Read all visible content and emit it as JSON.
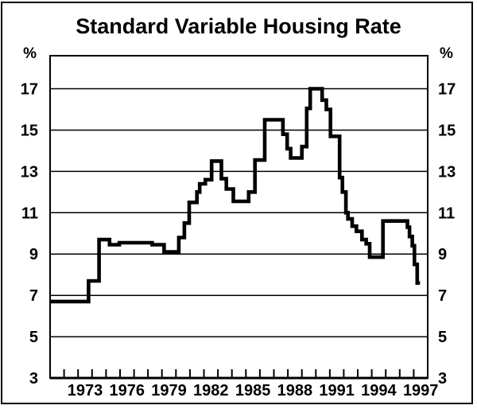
{
  "window": {
    "background": "#ffffff",
    "border_color": "#000000"
  },
  "chart_data": {
    "type": "line",
    "line_style": "step-after",
    "title": "Standard Variable Housing Rate",
    "unit_label_left": "%",
    "unit_label_right": "%",
    "grid": "horizontal",
    "legend": "none",
    "xlim": [
      1971,
      1998
    ],
    "ylim": [
      3,
      18.6
    ],
    "yticks": [
      3,
      5,
      7,
      9,
      11,
      13,
      15,
      17
    ],
    "ytick_labels_both_sides": true,
    "xtick_minor_step_years": 1,
    "xtick_label_years": [
      1973,
      1976,
      1979,
      1982,
      1985,
      1988,
      1991,
      1994,
      1997
    ],
    "series": [
      {
        "name": "Standard variable housing rate",
        "color": "#000000",
        "end_year": 1997.45,
        "points": [
          [
            1971.05,
            6.7
          ],
          [
            1973.75,
            7.7
          ],
          [
            1974.5,
            9.7
          ],
          [
            1975.25,
            9.45
          ],
          [
            1975.95,
            9.55
          ],
          [
            1978.3,
            9.45
          ],
          [
            1979.15,
            9.1
          ],
          [
            1980.2,
            9.8
          ],
          [
            1980.6,
            10.5
          ],
          [
            1980.95,
            11.5
          ],
          [
            1981.5,
            12.0
          ],
          [
            1981.7,
            12.4
          ],
          [
            1982.1,
            12.6
          ],
          [
            1982.55,
            13.5
          ],
          [
            1983.25,
            12.65
          ],
          [
            1983.6,
            12.15
          ],
          [
            1984.1,
            11.55
          ],
          [
            1985.2,
            12.0
          ],
          [
            1985.65,
            13.55
          ],
          [
            1986.35,
            15.5
          ],
          [
            1987.65,
            14.8
          ],
          [
            1987.95,
            14.1
          ],
          [
            1988.2,
            13.65
          ],
          [
            1989.0,
            14.2
          ],
          [
            1989.35,
            16.05
          ],
          [
            1989.6,
            17.0
          ],
          [
            1990.45,
            16.45
          ],
          [
            1990.75,
            16.0
          ],
          [
            1991.05,
            14.7
          ],
          [
            1991.7,
            12.7
          ],
          [
            1991.9,
            12.0
          ],
          [
            1992.15,
            11.0
          ],
          [
            1992.3,
            10.7
          ],
          [
            1992.6,
            10.35
          ],
          [
            1992.9,
            10.1
          ],
          [
            1993.3,
            9.7
          ],
          [
            1993.6,
            9.5
          ],
          [
            1993.85,
            8.85
          ],
          [
            1994.8,
            10.6
          ],
          [
            1996.55,
            10.3
          ],
          [
            1996.7,
            9.85
          ],
          [
            1996.9,
            9.4
          ],
          [
            1997.05,
            8.5
          ],
          [
            1997.25,
            7.6
          ]
        ]
      }
    ]
  }
}
